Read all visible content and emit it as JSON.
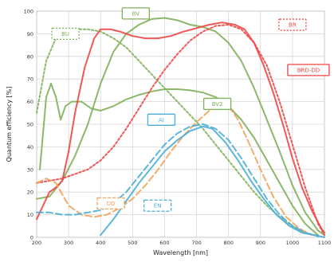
{
  "chart_data": {
    "type": "line",
    "xlabel": "Wavelength [nm]",
    "ylabel": "Quantum efficiency [%]",
    "xlim": [
      200,
      1100
    ],
    "ylim": [
      0,
      100
    ],
    "xticks": [
      200,
      300,
      400,
      500,
      600,
      700,
      800,
      900,
      1000,
      1100
    ],
    "yticks": [
      0,
      10,
      20,
      30,
      40,
      50,
      60,
      70,
      80,
      90,
      100
    ],
    "grid": true,
    "series": [
      {
        "name": "BV",
        "color": "#7fb05a",
        "style": "solid",
        "label": {
          "x": 510,
          "y": 99
        },
        "points": [
          [
            200,
            17
          ],
          [
            240,
            18
          ],
          [
            280,
            25
          ],
          [
            320,
            36
          ],
          [
            360,
            50
          ],
          [
            400,
            68
          ],
          [
            440,
            82
          ],
          [
            480,
            90
          ],
          [
            520,
            94
          ],
          [
            560,
            96.5
          ],
          [
            600,
            97
          ],
          [
            640,
            96
          ],
          [
            680,
            94
          ],
          [
            720,
            93
          ],
          [
            760,
            91
          ],
          [
            800,
            86
          ],
          [
            840,
            78
          ],
          [
            880,
            66
          ],
          [
            920,
            52
          ],
          [
            960,
            38
          ],
          [
            1000,
            23
          ],
          [
            1040,
            11
          ],
          [
            1080,
            3
          ],
          [
            1100,
            1
          ]
        ]
      },
      {
        "name": "BU",
        "color": "#7fb05a",
        "style": "dotted",
        "label": {
          "x": 290,
          "y": 90
        },
        "points": [
          [
            200,
            55
          ],
          [
            230,
            78
          ],
          [
            260,
            88
          ],
          [
            290,
            91
          ],
          [
            320,
            92
          ],
          [
            360,
            92
          ],
          [
            400,
            91
          ],
          [
            440,
            88
          ],
          [
            480,
            84
          ],
          [
            520,
            78
          ],
          [
            560,
            72
          ],
          [
            600,
            66
          ],
          [
            640,
            60
          ],
          [
            680,
            54
          ],
          [
            720,
            48
          ],
          [
            760,
            41
          ],
          [
            800,
            34
          ],
          [
            840,
            27
          ],
          [
            880,
            20
          ],
          [
            920,
            14
          ],
          [
            960,
            9
          ],
          [
            1000,
            5
          ],
          [
            1040,
            2
          ],
          [
            1080,
            0.5
          ]
        ]
      },
      {
        "name": "BV2",
        "color": "#7fb05a",
        "style": "solid",
        "label": {
          "x": 765,
          "y": 59
        },
        "points": [
          [
            210,
            30
          ],
          [
            230,
            62
          ],
          [
            245,
            68
          ],
          [
            260,
            62
          ],
          [
            275,
            52
          ],
          [
            290,
            58
          ],
          [
            310,
            60
          ],
          [
            340,
            60
          ],
          [
            370,
            57
          ],
          [
            400,
            56
          ],
          [
            440,
            58
          ],
          [
            480,
            61
          ],
          [
            520,
            63
          ],
          [
            560,
            64.5
          ],
          [
            600,
            65.5
          ],
          [
            640,
            65.5
          ],
          [
            680,
            65
          ],
          [
            720,
            64
          ],
          [
            760,
            62
          ],
          [
            800,
            58
          ],
          [
            840,
            52
          ],
          [
            880,
            44
          ],
          [
            920,
            34
          ],
          [
            960,
            24
          ],
          [
            1000,
            14
          ],
          [
            1040,
            6
          ],
          [
            1080,
            1
          ]
        ]
      },
      {
        "name": "BR",
        "color": "#f04545",
        "style": "dotted",
        "label": {
          "x": 1000,
          "y": 94
        },
        "points": [
          [
            200,
            24
          ],
          [
            240,
            25
          ],
          [
            280,
            26
          ],
          [
            320,
            28
          ],
          [
            360,
            30
          ],
          [
            400,
            34
          ],
          [
            440,
            40
          ],
          [
            480,
            48
          ],
          [
            520,
            57
          ],
          [
            560,
            66
          ],
          [
            600,
            74
          ],
          [
            640,
            81
          ],
          [
            680,
            87
          ],
          [
            720,
            91
          ],
          [
            760,
            93.5
          ],
          [
            800,
            94
          ],
          [
            840,
            92
          ],
          [
            880,
            86
          ],
          [
            920,
            76
          ],
          [
            960,
            60
          ],
          [
            1000,
            41
          ],
          [
            1040,
            22
          ],
          [
            1080,
            6
          ],
          [
            1100,
            1
          ]
        ]
      },
      {
        "name": "BRD-DD",
        "color": "#f04545",
        "style": "solid",
        "label": {
          "x": 1050,
          "y": 74
        },
        "points": [
          [
            200,
            8
          ],
          [
            220,
            14
          ],
          [
            240,
            20
          ],
          [
            260,
            22
          ],
          [
            280,
            25
          ],
          [
            300,
            38
          ],
          [
            320,
            55
          ],
          [
            350,
            75
          ],
          [
            380,
            88
          ],
          [
            400,
            92
          ],
          [
            430,
            92
          ],
          [
            460,
            91
          ],
          [
            500,
            89
          ],
          [
            540,
            88
          ],
          [
            580,
            88
          ],
          [
            620,
            89
          ],
          [
            660,
            91
          ],
          [
            700,
            92.5
          ],
          [
            740,
            94
          ],
          [
            780,
            95
          ],
          [
            820,
            94
          ],
          [
            850,
            92
          ],
          [
            880,
            86
          ],
          [
            910,
            76
          ],
          [
            940,
            64
          ],
          [
            970,
            50
          ],
          [
            1000,
            35
          ],
          [
            1030,
            22
          ],
          [
            1060,
            12
          ],
          [
            1090,
            4
          ],
          [
            1100,
            2
          ]
        ]
      },
      {
        "name": "DD",
        "color": "#f3a35a",
        "style": "dashed",
        "label": {
          "x": 432,
          "y": 15
        },
        "points": [
          [
            200,
            24
          ],
          [
            230,
            26
          ],
          [
            260,
            24
          ],
          [
            300,
            14
          ],
          [
            340,
            10
          ],
          [
            380,
            9
          ],
          [
            420,
            10
          ],
          [
            460,
            13
          ],
          [
            500,
            17
          ],
          [
            540,
            23
          ],
          [
            580,
            30
          ],
          [
            620,
            38
          ],
          [
            660,
            45
          ],
          [
            700,
            51
          ],
          [
            740,
            56
          ],
          [
            760,
            58
          ],
          [
            780,
            59
          ],
          [
            800,
            58
          ],
          [
            830,
            52
          ],
          [
            860,
            43
          ],
          [
            900,
            30
          ],
          [
            940,
            18
          ],
          [
            980,
            9
          ],
          [
            1020,
            4
          ],
          [
            1060,
            1
          ]
        ]
      },
      {
        "name": "AI",
        "color": "#4aaed6",
        "style": "solid",
        "label": {
          "x": 590,
          "y": 52
        },
        "points": [
          [
            400,
            1
          ],
          [
            440,
            8
          ],
          [
            480,
            16
          ],
          [
            520,
            24
          ],
          [
            560,
            31
          ],
          [
            600,
            38
          ],
          [
            640,
            43
          ],
          [
            680,
            47
          ],
          [
            720,
            49
          ],
          [
            750,
            48
          ],
          [
            790,
            42
          ],
          [
            830,
            34
          ],
          [
            870,
            25
          ],
          [
            910,
            17
          ],
          [
            950,
            10
          ],
          [
            990,
            5
          ],
          [
            1030,
            2
          ],
          [
            1070,
            1
          ],
          [
            1100,
            0
          ]
        ]
      },
      {
        "name": "EN",
        "color": "#4aaed6",
        "style": "dashed",
        "label": {
          "x": 578,
          "y": 14
        },
        "points": [
          [
            200,
            11
          ],
          [
            240,
            11
          ],
          [
            280,
            10
          ],
          [
            320,
            10
          ],
          [
            360,
            11
          ],
          [
            400,
            12
          ],
          [
            440,
            15
          ],
          [
            480,
            20
          ],
          [
            520,
            27
          ],
          [
            560,
            34
          ],
          [
            600,
            41
          ],
          [
            640,
            46
          ],
          [
            680,
            49
          ],
          [
            720,
            50
          ],
          [
            760,
            48
          ],
          [
            800,
            43
          ],
          [
            840,
            35
          ],
          [
            880,
            26
          ],
          [
            920,
            17
          ],
          [
            960,
            10
          ],
          [
            1000,
            5
          ],
          [
            1040,
            2
          ],
          [
            1080,
            0.5
          ]
        ]
      }
    ]
  }
}
